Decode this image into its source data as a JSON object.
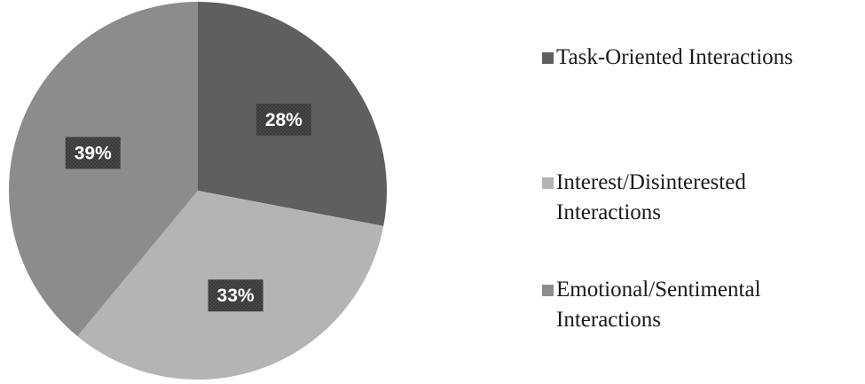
{
  "chart_data": {
    "type": "pie",
    "title": "",
    "start_angle_deg": 0,
    "direction": "clockwise",
    "slices": [
      {
        "label": "Task-Oriented Interactions",
        "value": 28,
        "display": "28%",
        "color": "#5f5f5f"
      },
      {
        "label": "Interest/Disinterested Interactions",
        "value": 33,
        "display": "33%",
        "color": "#b4b4b4"
      },
      {
        "label": "Emotional/Sentimental Interactions",
        "value": 39,
        "display": "39%",
        "color": "#8c8c8c"
      }
    ],
    "legend_position": "right"
  },
  "legend": {
    "items": [
      {
        "label": "Task-Oriented Interactions"
      },
      {
        "label": "Interest/Disinterested Interactions"
      },
      {
        "label": "Emotional/Sentimental Interactions"
      }
    ]
  }
}
